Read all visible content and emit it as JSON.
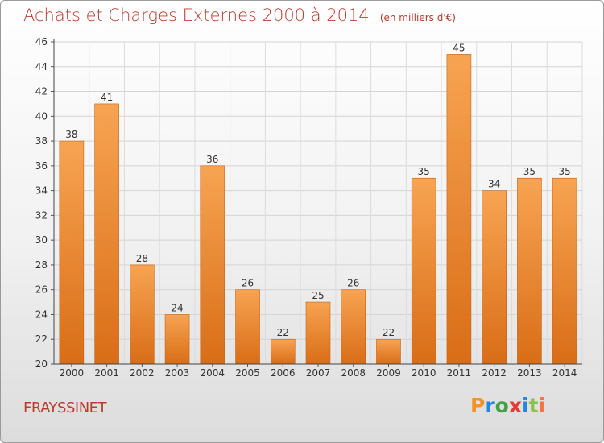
{
  "title": "Achats et Charges Externes 2000 à 2014",
  "unit": "(en milliers d'€)",
  "commune": "FRAYSSINET",
  "logo": {
    "text": "Proxiti",
    "letter_colors": [
      "#f0932b",
      "#1e88e5",
      "#43a047",
      "#e53935",
      "#1e88e5",
      "#8bc34a",
      "#ff7043"
    ]
  },
  "colors": {
    "bar_top": "#f7a452",
    "bar_bottom": "#d96d17",
    "title": "#c0392b"
  },
  "chart_data": {
    "type": "bar",
    "categories": [
      "2000",
      "2001",
      "2002",
      "2003",
      "2004",
      "2005",
      "2006",
      "2007",
      "2008",
      "2009",
      "2010",
      "2011",
      "2012",
      "2013",
      "2014"
    ],
    "values": [
      38,
      41,
      28,
      24,
      36,
      26,
      22,
      25,
      26,
      22,
      35,
      45,
      34,
      35,
      35
    ],
    "ylim": [
      20,
      46
    ],
    "yticks": [
      20,
      22,
      24,
      26,
      28,
      30,
      32,
      34,
      36,
      38,
      40,
      42,
      44,
      46
    ],
    "grid": true
  }
}
